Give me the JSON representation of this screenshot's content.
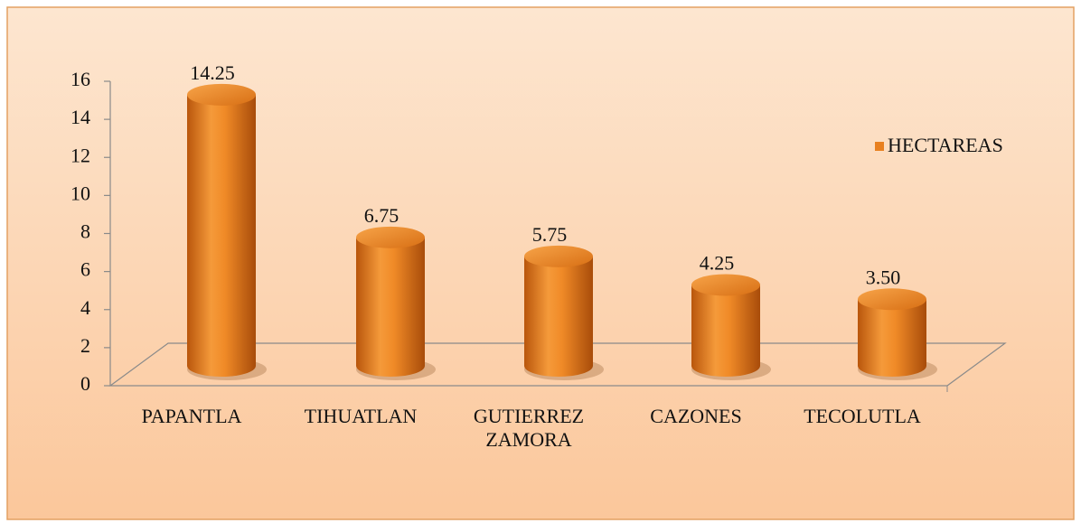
{
  "chart_data": {
    "type": "bar",
    "categories": [
      "PAPANTLA",
      "TIHUATLAN",
      "GUTIERREZ ZAMORA",
      "CAZONES",
      "TECOLUTLA"
    ],
    "series": [
      {
        "name": "HECTAREAS",
        "color": "#e8801f",
        "values": [
          14.25,
          6.75,
          5.75,
          4.25,
          3.5
        ],
        "value_labels": [
          "14.25",
          "6.75",
          "5.75",
          "4.25",
          "3.50"
        ]
      }
    ],
    "ylim": [
      0,
      16
    ],
    "yticks": [
      0,
      2,
      4,
      6,
      8,
      10,
      12,
      14,
      16
    ],
    "legend": "right"
  }
}
